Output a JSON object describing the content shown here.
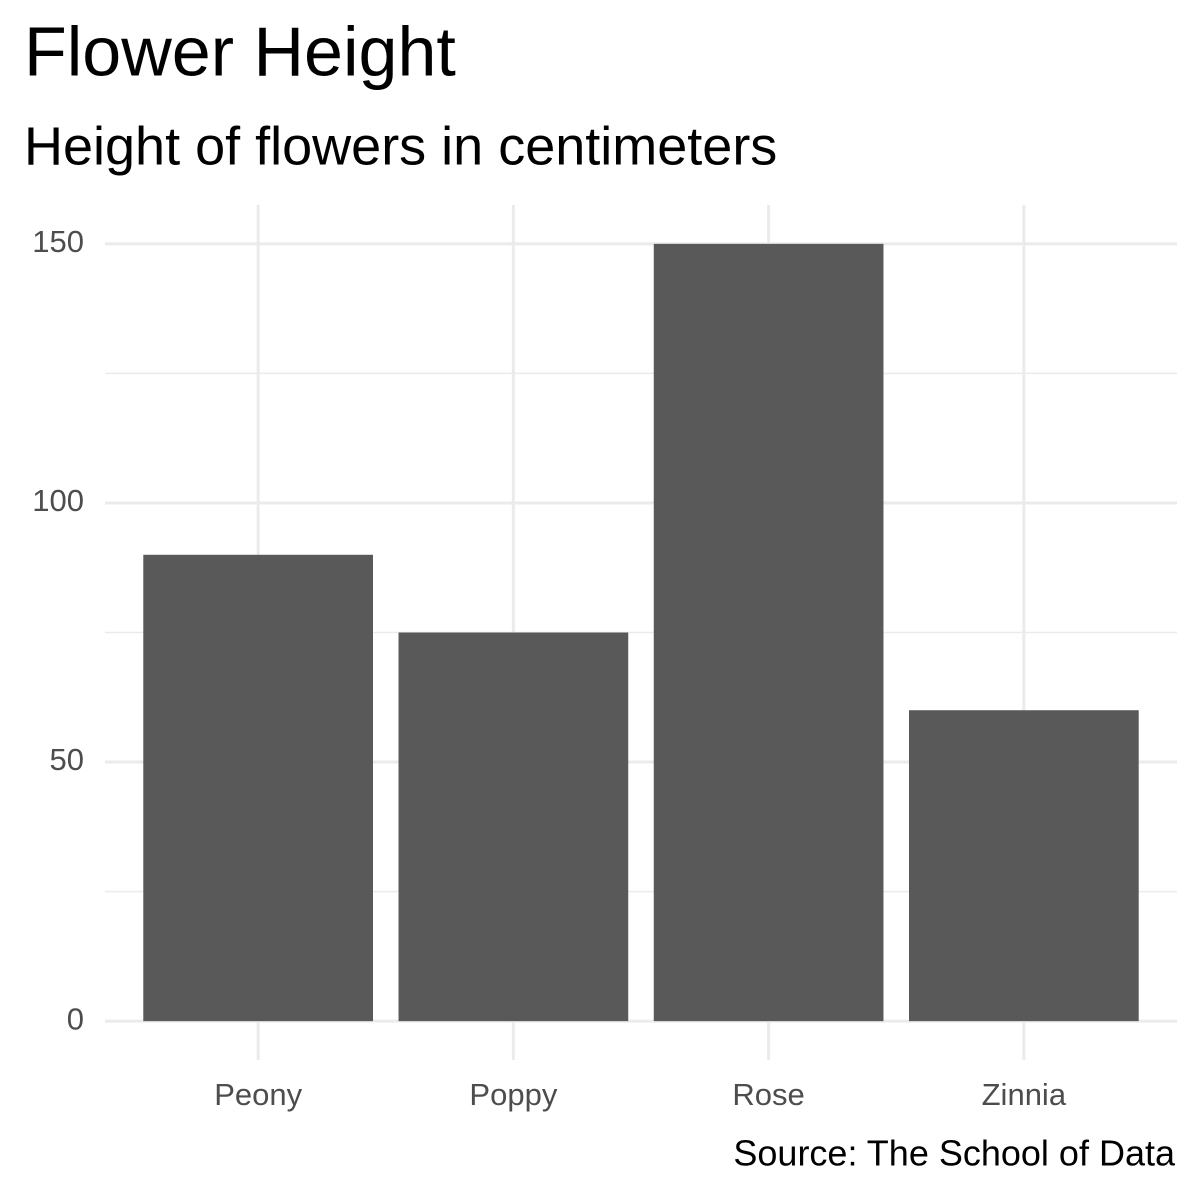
{
  "chart_data": {
    "type": "bar",
    "title": "Flower Height",
    "subtitle": "Height of flowers in centimeters",
    "caption": "Source: The School of Data",
    "categories": [
      "Peony",
      "Poppy",
      "Rose",
      "Zinnia"
    ],
    "values": [
      90,
      75,
      150,
      60
    ],
    "color": "#595959",
    "ylim": [
      -7.5,
      157.5
    ],
    "yticks": [
      0,
      50,
      100,
      150
    ],
    "minor_yticks": [
      25,
      75,
      125
    ],
    "grid": true
  }
}
